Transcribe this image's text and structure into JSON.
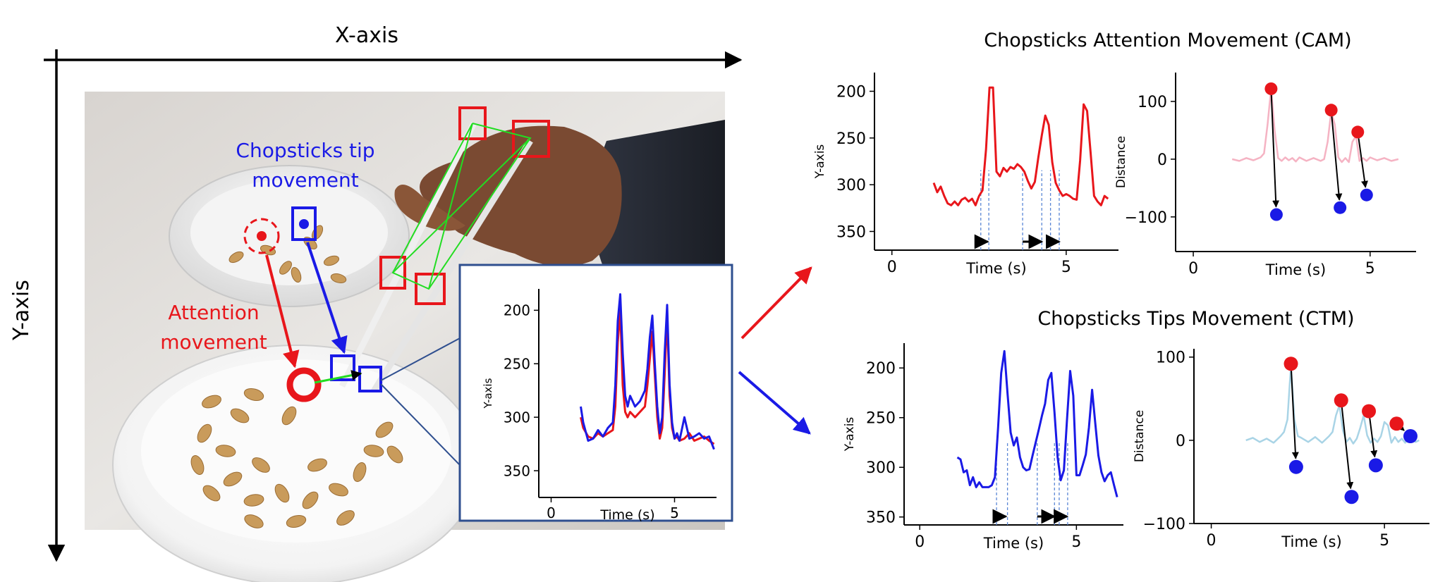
{
  "figure": {
    "x_axis_label": "X-axis",
    "y_axis_label": "Y-axis",
    "tip_label_line1": "Chopsticks tip",
    "tip_label_line2": "movement",
    "attention_label_line1": "Attention",
    "attention_label_line2": "movement",
    "cam_title": "Chopsticks Attention Movement (CAM)",
    "ctm_title": "Chopsticks Tips Movement (CTM)"
  },
  "colors": {
    "red": "#e8161b",
    "blue": "#1a1ae6",
    "pink": "#f5b3c3",
    "light_blue": "#a9d4e6",
    "green": "#22dd22",
    "inset_border": "#2f4f8f"
  },
  "chart_data": [
    {
      "id": "inset",
      "type": "line",
      "xlabel": "Time (s)",
      "ylabel": "Y-axis",
      "xlim": [
        -0.5,
        6.7
      ],
      "ylim": [
        375,
        180
      ],
      "y_inverted": true,
      "xticks": [
        0,
        5
      ],
      "yticks": [
        200,
        250,
        300,
        350
      ],
      "series": [
        {
          "color": "red",
          "x": [
            1.2,
            1.3,
            1.5,
            1.7,
            1.9,
            2.1,
            2.3,
            2.5,
            2.6,
            2.7,
            2.8,
            2.9,
            3.0,
            3.1,
            3.2,
            3.4,
            3.6,
            3.8,
            3.9,
            4.0,
            4.1,
            4.2,
            4.3,
            4.4,
            4.5,
            4.6,
            4.7,
            4.8,
            4.9,
            5.0,
            5.1,
            5.2,
            5.4,
            5.6,
            5.8,
            6.0,
            6.2,
            6.4,
            6.6
          ],
          "y": [
            300,
            310,
            318,
            320,
            315,
            318,
            315,
            312,
            290,
            230,
            200,
            270,
            295,
            300,
            295,
            300,
            295,
            290,
            270,
            245,
            220,
            260,
            300,
            320,
            310,
            260,
            205,
            280,
            310,
            320,
            318,
            322,
            320,
            315,
            322,
            320,
            318,
            322,
            325
          ]
        },
        {
          "color": "blue",
          "x": [
            1.2,
            1.3,
            1.5,
            1.7,
            1.9,
            2.1,
            2.3,
            2.5,
            2.6,
            2.7,
            2.8,
            2.9,
            3.0,
            3.1,
            3.2,
            3.4,
            3.6,
            3.8,
            3.9,
            4.0,
            4.1,
            4.2,
            4.3,
            4.4,
            4.5,
            4.6,
            4.7,
            4.8,
            4.9,
            5.0,
            5.1,
            5.2,
            5.4,
            5.6,
            5.8,
            6.0,
            6.2,
            6.4,
            6.6
          ],
          "y": [
            290,
            305,
            322,
            320,
            312,
            318,
            310,
            305,
            270,
            210,
            185,
            240,
            280,
            290,
            280,
            290,
            285,
            275,
            255,
            225,
            205,
            250,
            290,
            315,
            300,
            240,
            195,
            270,
            305,
            320,
            315,
            322,
            300,
            320,
            318,
            315,
            320,
            318,
            330
          ]
        }
      ]
    },
    {
      "id": "cam-y",
      "type": "line",
      "xlabel": "Time (s)",
      "ylabel": "Y-axis",
      "xlim": [
        -0.5,
        6.5
      ],
      "ylim": [
        370,
        180
      ],
      "y_inverted": true,
      "xticks": [
        0,
        5
      ],
      "yticks": [
        200,
        250,
        300,
        350
      ],
      "series": [
        {
          "color": "red",
          "x": [
            1.2,
            1.3,
            1.4,
            1.5,
            1.6,
            1.7,
            1.8,
            1.9,
            2.0,
            2.1,
            2.2,
            2.3,
            2.4,
            2.5,
            2.6,
            2.7,
            2.8,
            2.9,
            3.0,
            3.1,
            3.2,
            3.3,
            3.4,
            3.5,
            3.6,
            3.7,
            3.8,
            3.9,
            4.0,
            4.1,
            4.2,
            4.3,
            4.4,
            4.5,
            4.6,
            4.7,
            4.8,
            4.9,
            5.0,
            5.1,
            5.2,
            5.3,
            5.4,
            5.5,
            5.6,
            5.7,
            5.8,
            5.9,
            6.0,
            6.1,
            6.2
          ],
          "y": [
            298,
            308,
            302,
            312,
            320,
            322,
            318,
            322,
            316,
            314,
            318,
            315,
            322,
            312,
            306,
            262,
            196,
            196,
            286,
            291,
            282,
            286,
            281,
            283,
            278,
            281,
            286,
            296,
            304,
            297,
            271,
            247,
            226,
            236,
            276,
            298,
            306,
            312,
            310,
            312,
            315,
            316,
            274,
            214,
            221,
            266,
            312,
            318,
            322,
            312,
            315
          ]
        }
      ],
      "arrows": [
        [
          2.55,
          2.75
        ],
        [
          3.75,
          4.3
        ],
        [
          4.55,
          4.8
        ]
      ],
      "dashed_x": [
        2.55,
        2.78,
        3.75,
        4.3,
        4.55,
        4.8
      ]
    },
    {
      "id": "cam-d",
      "type": "line",
      "xlabel": "Time (s)",
      "ylabel": "Distance",
      "xlim": [
        -0.5,
        6.3
      ],
      "ylim": [
        -160,
        150
      ],
      "xticks": [
        0,
        5
      ],
      "yticks": [
        100,
        0,
        -100
      ],
      "series": [
        {
          "color": "pink",
          "x": [
            1.1,
            1.3,
            1.5,
            1.7,
            1.9,
            2.0,
            2.1,
            2.2,
            2.3,
            2.4,
            2.5,
            2.6,
            2.7,
            2.8,
            2.9,
            3.0,
            3.2,
            3.4,
            3.6,
            3.7,
            3.8,
            3.9,
            4.0,
            4.1,
            4.2,
            4.3,
            4.4,
            4.5,
            4.6,
            4.7,
            4.8,
            4.9,
            5.0,
            5.2,
            5.4,
            5.6,
            5.8
          ],
          "y": [
            0,
            -3,
            2,
            -2,
            3,
            10,
            60,
            122,
            50,
            2,
            -3,
            3,
            -2,
            2,
            -4,
            3,
            -3,
            2,
            -3,
            0,
            30,
            82,
            60,
            3,
            -5,
            2,
            -5,
            30,
            40,
            -3,
            2,
            -3,
            3,
            -2,
            2,
            -3,
            0
          ]
        }
      ],
      "markers": [
        {
          "from": [
            2.2,
            122
          ],
          "to": [
            2.35,
            -96
          ]
        },
        {
          "from": [
            3.9,
            85
          ],
          "to": [
            4.15,
            -84
          ]
        },
        {
          "from": [
            4.65,
            47
          ],
          "to": [
            4.9,
            -62
          ]
        }
      ]
    },
    {
      "id": "ctm-y",
      "type": "line",
      "xlabel": "Time (s)",
      "ylabel": "Y-axis",
      "xlim": [
        -0.5,
        6.5
      ],
      "ylim": [
        358,
        175
      ],
      "y_inverted": true,
      "xticks": [
        0,
        5
      ],
      "yticks": [
        200,
        250,
        300,
        350
      ],
      "series": [
        {
          "color": "blue",
          "x": [
            1.2,
            1.3,
            1.4,
            1.5,
            1.6,
            1.7,
            1.8,
            1.9,
            2.0,
            2.1,
            2.2,
            2.3,
            2.4,
            2.5,
            2.6,
            2.7,
            2.8,
            2.9,
            3.0,
            3.1,
            3.2,
            3.3,
            3.4,
            3.5,
            3.6,
            3.7,
            3.8,
            3.9,
            4.0,
            4.1,
            4.2,
            4.3,
            4.4,
            4.5,
            4.6,
            4.7,
            4.8,
            4.9,
            5.0,
            5.1,
            5.2,
            5.3,
            5.4,
            5.5,
            5.6,
            5.7,
            5.8,
            5.9,
            6.0,
            6.1,
            6.2,
            6.3
          ],
          "y": [
            290,
            292,
            305,
            303,
            318,
            310,
            320,
            315,
            320,
            320,
            320,
            318,
            310,
            260,
            205,
            183,
            225,
            265,
            278,
            270,
            290,
            300,
            303,
            302,
            288,
            275,
            262,
            248,
            236,
            212,
            205,
            245,
            290,
            313,
            303,
            252,
            203,
            228,
            308,
            308,
            298,
            287,
            260,
            222,
            255,
            288,
            305,
            314,
            308,
            305,
            318,
            330
          ]
        }
      ],
      "arrows": [
        [
          2.45,
          2.75
        ],
        [
          3.75,
          4.3
        ],
        [
          4.45,
          4.7
        ]
      ],
      "dashed_x": [
        2.45,
        2.8,
        3.75,
        4.3,
        4.45,
        4.72
      ]
    },
    {
      "id": "ctm-d",
      "type": "line",
      "xlabel": "Time (s)",
      "ylabel": "Distance",
      "xlim": [
        -0.5,
        6.3
      ],
      "ylim": [
        -100,
        110
      ],
      "xticks": [
        0,
        5
      ],
      "yticks": [
        100,
        0,
        -100
      ],
      "series": [
        {
          "color": "light_blue",
          "x": [
            1.0,
            1.2,
            1.4,
            1.6,
            1.8,
            2.0,
            2.1,
            2.2,
            2.3,
            2.4,
            2.5,
            2.6,
            2.8,
            3.0,
            3.2,
            3.4,
            3.5,
            3.6,
            3.7,
            3.8,
            3.9,
            4.0,
            4.1,
            4.2,
            4.3,
            4.4,
            4.5,
            4.6,
            4.7,
            4.8,
            4.9,
            5.0,
            5.1,
            5.2,
            5.3,
            5.4,
            5.5,
            5.6,
            5.7,
            5.8,
            5.9,
            6.0
          ],
          "y": [
            0,
            3,
            -2,
            2,
            -3,
            5,
            10,
            25,
            90,
            25,
            5,
            3,
            -2,
            4,
            -3,
            5,
            10,
            30,
            42,
            12,
            -2,
            3,
            -4,
            2,
            15,
            30,
            6,
            -3,
            2,
            -2,
            5,
            22,
            18,
            -3,
            4,
            -2,
            2,
            -3,
            4,
            2,
            -2,
            0
          ]
        }
      ],
      "markers": [
        {
          "from": [
            2.3,
            92
          ],
          "to": [
            2.45,
            -32
          ]
        },
        {
          "from": [
            3.75,
            48
          ],
          "to": [
            4.05,
            -68
          ]
        },
        {
          "from": [
            4.55,
            35
          ],
          "to": [
            4.75,
            -30
          ]
        },
        {
          "from": [
            5.35,
            20
          ],
          "to": [
            5.75,
            5
          ]
        }
      ]
    }
  ]
}
